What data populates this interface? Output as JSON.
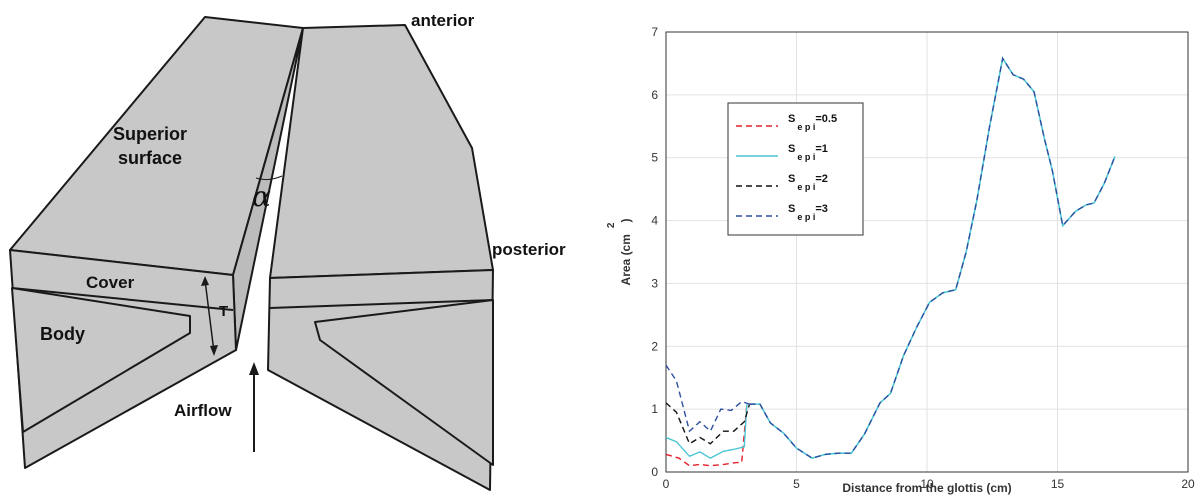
{
  "diagram": {
    "labels": {
      "anterior": "anterior",
      "posterior": "posterior",
      "superior": "Superior",
      "surface": "surface",
      "cover": "Cover",
      "body": "Body",
      "t": "T",
      "alpha": "α",
      "airflow": "Airflow"
    },
    "colors": {
      "fill": "#c8c8c8",
      "stroke": "#1a1a1a"
    }
  },
  "chart_data": {
    "type": "line",
    "xlabel": "Distance from the glottis (cm)",
    "ylabel_text": "Area (cm",
    "ylabel_sup": "2",
    "ylabel_close": ")",
    "xlim": [
      0,
      20
    ],
    "ylim": [
      0,
      7
    ],
    "xticks": [
      0,
      5,
      10,
      15,
      20
    ],
    "yticks": [
      0,
      1,
      2,
      3,
      4,
      5,
      6,
      7
    ],
    "grid": true,
    "legend_position": "upper-left",
    "series": [
      {
        "legend_main": "S",
        "legend_sub": "e p i",
        "legend_value": "=0.5",
        "color": "#e0202a",
        "dash": "6,4",
        "x": [
          0,
          0.5,
          0.9,
          1.3,
          1.7,
          2.2,
          2.7,
          2.9,
          3.1
        ],
        "y": [
          0.28,
          0.22,
          0.1,
          0.12,
          0.1,
          0.12,
          0.15,
          0.15,
          1.08
        ]
      },
      {
        "legend_main": "S",
        "legend_sub": "e p i",
        "legend_value": "=1",
        "color": "#4cc6d4",
        "dash": "",
        "x": [
          0,
          0.4,
          0.9,
          1.3,
          1.7,
          2.2,
          2.6,
          3.0,
          3.1
        ],
        "y": [
          0.55,
          0.48,
          0.25,
          0.32,
          0.22,
          0.33,
          0.36,
          0.4,
          1.08
        ]
      },
      {
        "legend_main": "S",
        "legend_sub": "e p i",
        "legend_value": "=2",
        "color": "#111111",
        "dash": "6,4",
        "x": [
          0,
          0.4,
          0.9,
          1.3,
          1.7,
          2.2,
          2.6,
          3.0,
          3.2
        ],
        "y": [
          1.1,
          0.95,
          0.45,
          0.55,
          0.45,
          0.65,
          0.65,
          0.8,
          1.08
        ]
      },
      {
        "legend_main": "S",
        "legend_sub": "e p i",
        "legend_value": "=3",
        "color": "#2f4f9f",
        "dash": "6,4",
        "x": [
          0,
          0.4,
          0.9,
          1.3,
          1.7,
          2.1,
          2.5,
          2.9,
          3.2
        ],
        "y": [
          1.7,
          1.45,
          0.65,
          0.8,
          0.65,
          1.0,
          0.98,
          1.12,
          1.08
        ]
      }
    ],
    "common": {
      "x": [
        3.2,
        3.6,
        4.0,
        4.5,
        5.0,
        5.6,
        6.1,
        6.6,
        7.1,
        7.6,
        8.2,
        8.6,
        9.1,
        9.6,
        10.1,
        10.6,
        11.1,
        11.5,
        11.9,
        12.4,
        12.9,
        13.3,
        13.7,
        14.1,
        14.5,
        14.8,
        15.2,
        15.7,
        16.1,
        16.4,
        16.8,
        17.2
      ],
      "y": [
        1.08,
        1.08,
        0.78,
        0.62,
        0.38,
        0.22,
        0.28,
        0.3,
        0.3,
        0.6,
        1.1,
        1.25,
        1.85,
        2.3,
        2.7,
        2.85,
        2.9,
        3.5,
        4.3,
        5.5,
        6.58,
        6.32,
        6.25,
        6.05,
        5.3,
        4.8,
        3.92,
        4.15,
        4.25,
        4.28,
        4.6,
        5.02
      ]
    }
  }
}
